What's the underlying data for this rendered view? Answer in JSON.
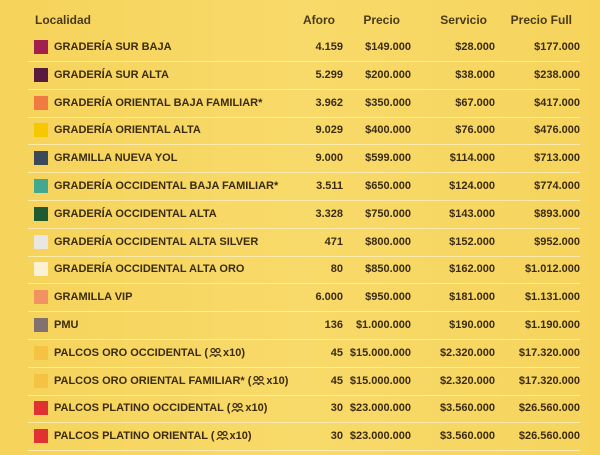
{
  "table": {
    "headers": [
      "Localidad",
      "Aforo",
      "Precio",
      "Servicio",
      "Precio Full"
    ],
    "rows": [
      {
        "color": "#a3204c",
        "name": "GRADERÍA SUR BAJA",
        "aforo": "4.159",
        "precio": "$149.000",
        "servicio": "$28.000",
        "full": "$177.000"
      },
      {
        "color": "#5b1b3c",
        "name": "GRADERÍA SUR ALTA",
        "aforo": "5.299",
        "precio": "$200.000",
        "servicio": "$38.000",
        "full": "$238.000"
      },
      {
        "color": "#f07a42",
        "name": "GRADERÍA ORIENTAL BAJA FAMILIAR*",
        "aforo": "3.962",
        "precio": "$350.000",
        "servicio": "$67.000",
        "full": "$417.000"
      },
      {
        "color": "#f5c800",
        "name": "GRADERÍA ORIENTAL ALTA",
        "aforo": "9.029",
        "precio": "$400.000",
        "servicio": "$76.000",
        "full": "$476.000"
      },
      {
        "color": "#3b4a5b",
        "name": "GRAMILLA NUEVA YOL",
        "aforo": "9.000",
        "precio": "$599.000",
        "servicio": "$114.000",
        "full": "$713.000"
      },
      {
        "color": "#42a88f",
        "name": "GRADERÍA OCCIDENTAL BAJA FAMILIAR*",
        "aforo": "3.511",
        "precio": "$650.000",
        "servicio": "$124.000",
        "full": "$774.000"
      },
      {
        "color": "#1f5a31",
        "name": "GRADERÍA OCCIDENTAL ALTA",
        "aforo": "3.328",
        "precio": "$750.000",
        "servicio": "$143.000",
        "full": "$893.000"
      },
      {
        "color": "#e9e7e2",
        "name": "GRADERÍA OCCIDENTAL ALTA SILVER",
        "aforo": "471",
        "precio": "$800.000",
        "servicio": "$152.000",
        "full": "$952.000"
      },
      {
        "color": "#fcf1d2",
        "name": "GRADERÍA OCCIDENTAL ALTA ORO",
        "aforo": "80",
        "precio": "$850.000",
        "servicio": "$162.000",
        "full": "$1.012.000"
      },
      {
        "color": "#f09262",
        "name": "GRAMILLA VIP",
        "aforo": "6.000",
        "precio": "$950.000",
        "servicio": "$181.000",
        "full": "$1.131.000"
      },
      {
        "color": "#817270",
        "name": "PMU",
        "aforo": "136",
        "precio": "$1.000.000",
        "servicio": "$190.000",
        "full": "$1.190.000"
      },
      {
        "color": "#f5c244",
        "name": "PALCOS ORO OCCIDENTAL",
        "pack": [
          "(",
          "x10)"
        ],
        "aforo": "45",
        "precio": "$15.000.000",
        "servicio": "$2.320.000",
        "full": "$17.320.000"
      },
      {
        "color": "#f5c244",
        "name": "PALCOS ORO ORIENTAL FAMILIAR*",
        "pack": [
          "(",
          "x10)"
        ],
        "aforo": "45",
        "precio": "$15.000.000",
        "servicio": "$2.320.000",
        "full": "$17.320.000"
      },
      {
        "color": "#e03232",
        "name": "PALCOS PLATINO OCCIDENTAL",
        "pack": [
          "(",
          "x10)"
        ],
        "aforo": "30",
        "precio": "$23.000.000",
        "servicio": "$3.560.000",
        "full": "$26.560.000"
      },
      {
        "color": "#e03232",
        "name": "PALCOS PLATINO ORIENTAL",
        "pack": [
          "(",
          "x10)"
        ],
        "aforo": "30",
        "precio": "$23.000.000",
        "servicio": "$3.560.000",
        "full": "$26.560.000"
      }
    ]
  }
}
